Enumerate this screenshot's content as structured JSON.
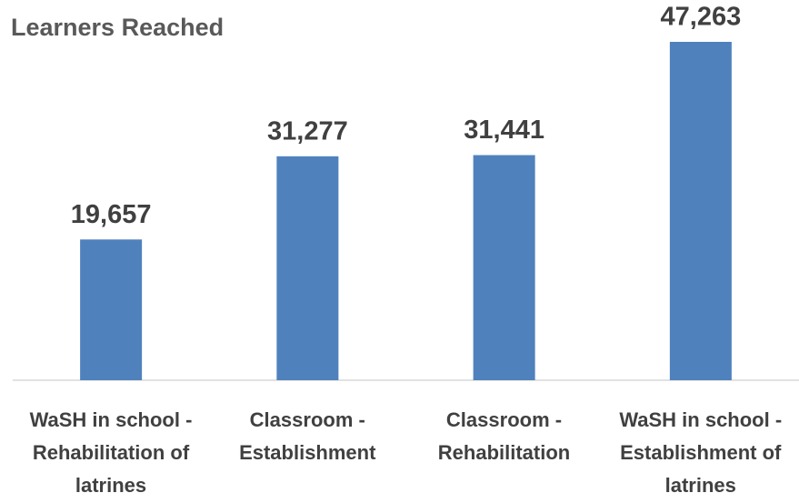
{
  "chart_data": {
    "type": "bar",
    "title": "Learners Reached",
    "categories": [
      "WaSH in school - Rehabilitation of latrines",
      "Classroom - Establishment",
      "Classroom - Rehabilitation",
      "WaSH in school - Establishment of latrines"
    ],
    "values": [
      19657,
      31277,
      31441,
      47263
    ],
    "value_labels": [
      "19,657",
      "31,277",
      "31,441",
      "47,263"
    ],
    "color": "#4f81bd"
  }
}
